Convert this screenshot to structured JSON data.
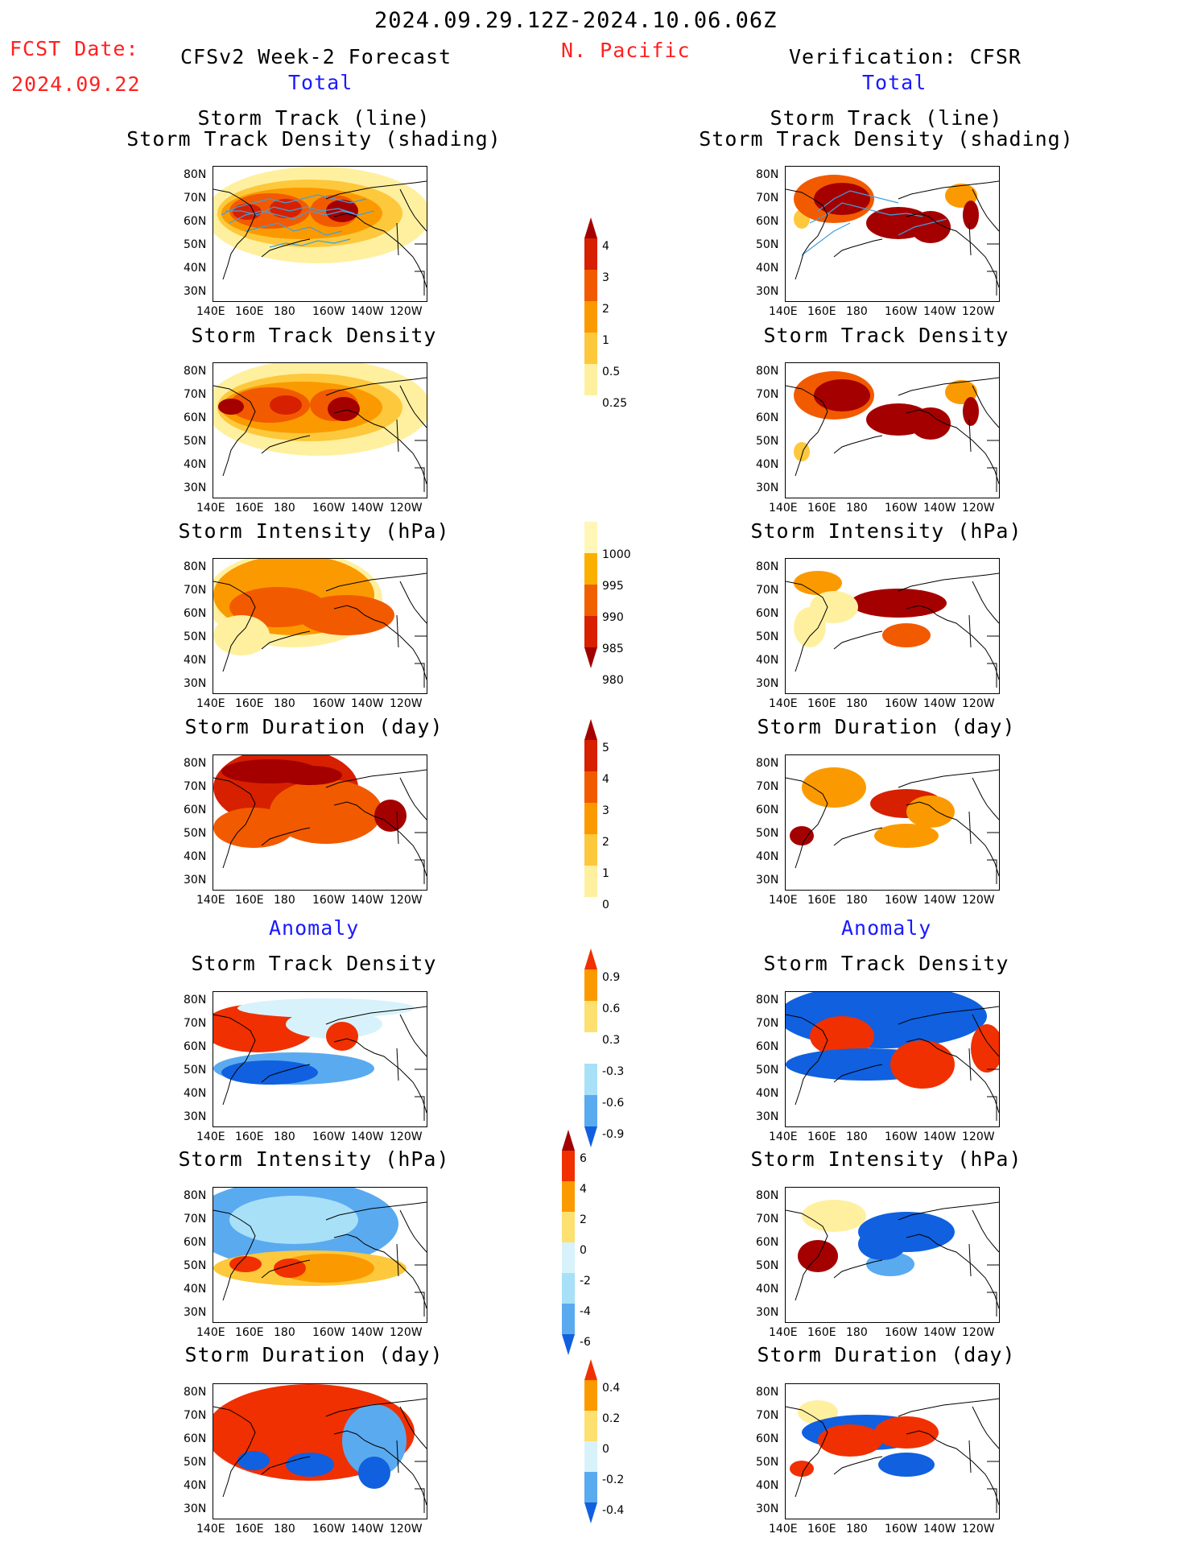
{
  "header": {
    "date_range": "2024.09.29.12Z-2024.10.06.06Z",
    "region": "N. Pacific",
    "fcst_label": "FCST Date:",
    "fcst_date": "2024.09.22",
    "left_title": "CFSv2 Week-2 Forecast",
    "right_title": "Verification: CFSR",
    "total_label": "Total",
    "anomaly_label": "Anomaly"
  },
  "panel_titles": {
    "track": [
      "Storm Track (line)",
      "Storm Track Density (shading)"
    ],
    "density": "Storm Track Density",
    "intensity": "Storm Intensity (hPa)",
    "duration": "Storm Duration (day)"
  },
  "axes": {
    "lat_labels": [
      "80N",
      "70N",
      "60N",
      "50N",
      "40N",
      "30N"
    ],
    "lon_labels": [
      "140E",
      "160E",
      "180",
      "160W",
      "140W",
      "120W"
    ]
  },
  "colorbars": {
    "density_total": {
      "labels": [
        "4",
        "3",
        "2",
        "1",
        "0.5",
        "0.25"
      ],
      "colors": [
        "#a50000",
        "#d62000",
        "#f25a00",
        "#fb9a00",
        "#fdc83c",
        "#fff0a0"
      ]
    },
    "intensity_total": {
      "labels": [
        "1000",
        "995",
        "990",
        "985",
        "980"
      ],
      "colors": [
        "#fff6b8",
        "#fbb000",
        "#f06000",
        "#d82000",
        "#a00000"
      ]
    },
    "duration_total": {
      "labels": [
        "5",
        "4",
        "3",
        "2",
        "1",
        "0"
      ],
      "colors": [
        "#a50000",
        "#d62000",
        "#f25a00",
        "#fb9a00",
        "#fdc83c",
        "#fff0a0"
      ]
    },
    "density_anom": {
      "labels": [
        "0.9",
        "0.6",
        "0.3",
        "-0.3",
        "-0.6",
        "-0.9"
      ],
      "colors": [
        "#f03000",
        "#fb9a00",
        "#fde070",
        "#ffffff",
        "#a8e0f8",
        "#5aaaf0",
        "#1060e0"
      ]
    },
    "intensity_anom": {
      "labels": [
        "6",
        "4",
        "2",
        "0",
        "-2",
        "-4",
        "-6"
      ],
      "colors": [
        "#a00000",
        "#f03000",
        "#fb9a00",
        "#fde070",
        "#d8f2fb",
        "#a8e0f8",
        "#5aaaf0",
        "#1060e0"
      ]
    },
    "duration_anom": {
      "labels": [
        "0.4",
        "0.2",
        "0",
        "-0.2",
        "-0.4"
      ],
      "colors": [
        "#f03000",
        "#fb9a00",
        "#fde070",
        "#d8f2fb",
        "#5aaaf0",
        "#1060e0"
      ]
    }
  }
}
